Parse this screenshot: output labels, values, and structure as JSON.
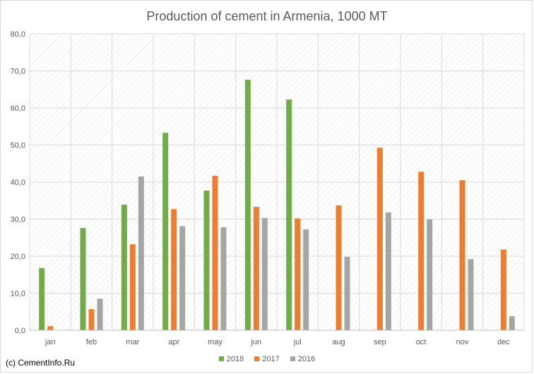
{
  "chart_data": {
    "type": "bar",
    "title": "Production of cement in Armenia, 1000 MT",
    "categories": [
      "jan",
      "feb",
      "mar",
      "apr",
      "may",
      "jun",
      "jul",
      "aug",
      "sep",
      "oct",
      "nov",
      "dec"
    ],
    "series": [
      {
        "name": "2018",
        "color": "#70ad47",
        "values": [
          16.8,
          27.6,
          33.9,
          53.3,
          37.7,
          67.6,
          62.3,
          null,
          null,
          null,
          null,
          null
        ]
      },
      {
        "name": "2017",
        "color": "#ed7d31",
        "values": [
          1.1,
          5.7,
          23.2,
          32.7,
          41.7,
          33.3,
          30.2,
          33.7,
          49.3,
          42.8,
          40.5,
          21.8
        ]
      },
      {
        "name": "2016",
        "color": "#a5a5a5",
        "values": [
          null,
          8.5,
          41.5,
          28.1,
          27.8,
          30.3,
          27.2,
          19.8,
          31.8,
          29.9,
          19.2,
          3.8
        ]
      }
    ],
    "ylim": [
      0,
      80
    ],
    "y_ticks": [
      "0,0",
      "10,0",
      "20,0",
      "30,0",
      "40,0",
      "50,0",
      "60,0",
      "70,0",
      "80,0"
    ],
    "grid": true,
    "legend_position": "bottom",
    "background": "diagonal-hatch"
  },
  "copyright": "(c) CementInfo.Ru"
}
